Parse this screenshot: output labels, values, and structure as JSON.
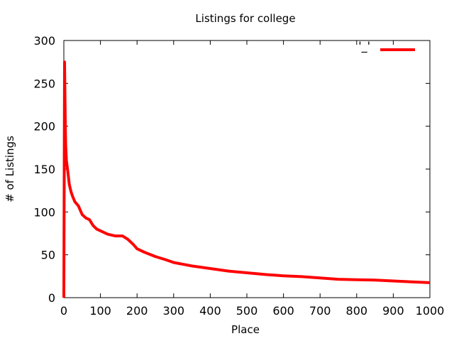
{
  "chart_data": {
    "type": "line",
    "title": "Listings for college",
    "xlabel": "Place",
    "ylabel": "# of Listings",
    "xlim": [
      0,
      1000
    ],
    "ylim": [
      0,
      300
    ],
    "xticks": [
      0,
      100,
      200,
      300,
      400,
      500,
      600,
      700,
      800,
      900,
      1000
    ],
    "yticks": [
      0,
      50,
      100,
      150,
      200,
      250,
      300
    ],
    "grid": false,
    "legend": {
      "position": "top-right",
      "label": "'_'"
    },
    "series": [
      {
        "color": "#ff0000",
        "x": [
          0,
          1,
          2,
          3,
          4,
          5,
          7,
          10,
          15,
          20,
          25,
          30,
          40,
          50,
          60,
          70,
          80,
          90,
          100,
          120,
          140,
          160,
          175,
          190,
          200,
          220,
          250,
          280,
          300,
          350,
          400,
          450,
          500,
          550,
          600,
          650,
          700,
          750,
          800,
          850,
          900,
          950,
          1000
        ],
        "y": [
          0,
          138,
          275,
          240,
          200,
          178,
          160,
          150,
          132,
          123,
          117,
          112,
          107,
          97,
          93,
          91,
          84,
          80,
          78,
          74,
          72,
          72,
          68,
          62,
          57,
          53,
          48,
          44,
          41,
          37,
          34,
          31,
          29,
          27,
          25.5,
          24.5,
          23,
          21.5,
          21,
          20.5,
          19.5,
          18.5,
          17.5
        ]
      }
    ]
  }
}
